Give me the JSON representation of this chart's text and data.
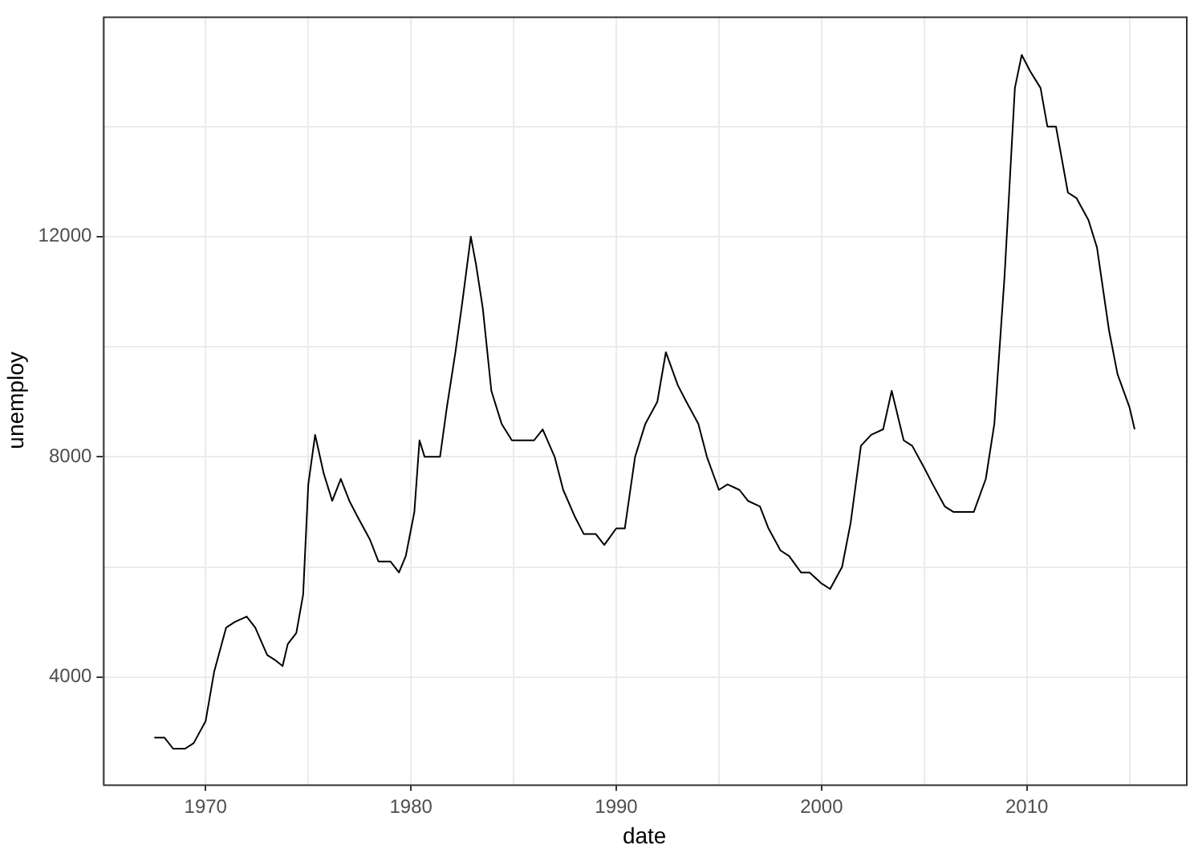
{
  "chart_data": {
    "type": "line",
    "xlabel": "date",
    "ylabel": "unemploy",
    "x": [
      "1967-07",
      "1968-01",
      "1968-06",
      "1969-01",
      "1969-06",
      "1970-01",
      "1970-06",
      "1971-01",
      "1971-06",
      "1972-01",
      "1972-06",
      "1973-01",
      "1973-06",
      "1973-10",
      "1974-01",
      "1974-06",
      "1974-10",
      "1975-01",
      "1975-05",
      "1975-10",
      "1976-03",
      "1976-08",
      "1977-01",
      "1977-06",
      "1978-01",
      "1978-06",
      "1979-01",
      "1979-06",
      "1979-10",
      "1980-03",
      "1980-06",
      "1980-09",
      "1981-01",
      "1981-06",
      "1981-10",
      "1982-03",
      "1982-07",
      "1982-12",
      "1983-03",
      "1983-07",
      "1983-12",
      "1984-06",
      "1984-12",
      "1985-06",
      "1986-01",
      "1986-06",
      "1987-01",
      "1987-06",
      "1988-01",
      "1988-06",
      "1989-01",
      "1989-06",
      "1990-01",
      "1990-06",
      "1990-12",
      "1991-06",
      "1992-01",
      "1992-06",
      "1993-01",
      "1993-06",
      "1994-01",
      "1994-06",
      "1995-01",
      "1995-06",
      "1996-01",
      "1996-06",
      "1997-01",
      "1997-06",
      "1998-01",
      "1998-06",
      "1999-01",
      "1999-06",
      "2000-01",
      "2000-06",
      "2001-01",
      "2001-06",
      "2001-12",
      "2002-06",
      "2003-01",
      "2003-06",
      "2004-01",
      "2004-06",
      "2005-01",
      "2005-06",
      "2006-01",
      "2006-06",
      "2007-01",
      "2007-06",
      "2008-01",
      "2008-06",
      "2008-12",
      "2009-06",
      "2009-10",
      "2010-03",
      "2010-09",
      "2011-01",
      "2011-06",
      "2012-01",
      "2012-06",
      "2013-01",
      "2013-06",
      "2014-01",
      "2014-06",
      "2015-01",
      "2015-04"
    ],
    "series": [
      {
        "color": "#000000",
        "values": [
          2900,
          2900,
          2700,
          2700,
          2800,
          3200,
          4100,
          4900,
          5000,
          5100,
          4900,
          4400,
          4300,
          4200,
          4600,
          4800,
          5500,
          7500,
          8400,
          7700,
          7200,
          7600,
          7200,
          6900,
          6500,
          6100,
          6100,
          5900,
          6200,
          7000,
          8300,
          8000,
          8000,
          8000,
          8900,
          9900,
          10800,
          12000,
          11500,
          10700,
          9200,
          8600,
          8300,
          8300,
          8300,
          8500,
          8000,
          7400,
          6900,
          6600,
          6600,
          6400,
          6700,
          6700,
          8000,
          8600,
          9000,
          9900,
          9300,
          9000,
          8600,
          8000,
          7400,
          7500,
          7400,
          7200,
          7100,
          6700,
          6300,
          6200,
          5900,
          5900,
          5700,
          5600,
          6000,
          6800,
          8200,
          8400,
          8500,
          9200,
          8300,
          8200,
          7800,
          7500,
          7100,
          7000,
          7000,
          7000,
          7600,
          8600,
          11300,
          14700,
          15300,
          15000,
          14700,
          14000,
          14000,
          12800,
          12700,
          12300,
          11800,
          10300,
          9500,
          8900,
          8500
        ]
      }
    ],
    "xlim": [
      "1965-01",
      "2017-10"
    ],
    "xticks": [
      {
        "value": "1965",
        "label": null
      },
      "1970",
      {
        "value": "1975",
        "label": null
      },
      "1980",
      {
        "value": "1985",
        "label": null
      },
      "1990",
      {
        "value": "1995",
        "label": null
      },
      "2000",
      {
        "value": "2005",
        "label": null
      },
      "2010",
      {
        "value": "2015",
        "label": null
      }
    ],
    "ylim": [
      2050,
      16000
    ],
    "yticks": [
      4000,
      {
        "value": 6000,
        "label": null
      },
      8000,
      {
        "value": 10000,
        "label": null
      },
      12000,
      {
        "value": 14000,
        "label": null
      }
    ],
    "grid": true,
    "legend": false,
    "marker": "none",
    "line_style": "solid"
  }
}
